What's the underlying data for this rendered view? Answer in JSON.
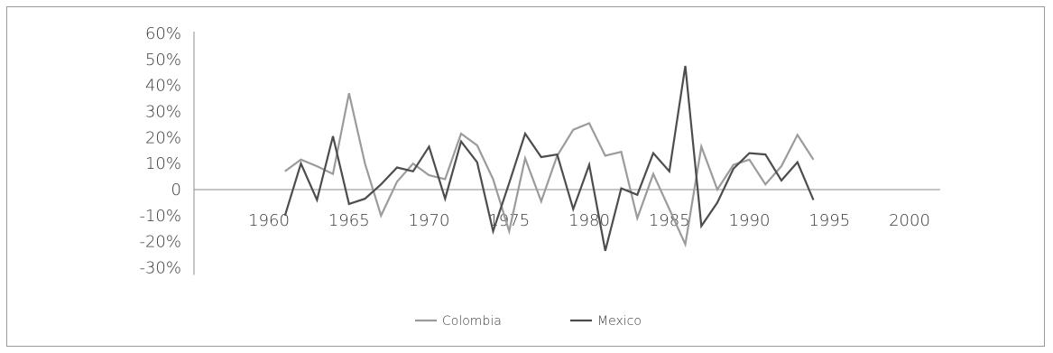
{
  "chart_data": {
    "type": "line",
    "title": "",
    "xlabel": "",
    "ylabel": "",
    "x_ticks": [
      1960,
      1965,
      1970,
      1975,
      1980,
      1985,
      1990,
      1995,
      2000
    ],
    "x_tick_labels": [
      "1960",
      "1965",
      "1970",
      "1975",
      "1980",
      "1985",
      "1990",
      "1995",
      "2000"
    ],
    "y_ticks": [
      60,
      50,
      40,
      30,
      20,
      10,
      0,
      -10,
      -20,
      -30
    ],
    "y_tick_labels": [
      "60%",
      "50%",
      "40%",
      "30%",
      "20%",
      "10%",
      "0",
      "-10%",
      "-20%",
      "-30%"
    ],
    "xlim": [
      1955,
      2002
    ],
    "ylim": [
      -30,
      60
    ],
    "grid": false,
    "legend_position": "bottom",
    "series": [
      {
        "name": "Colombia",
        "color": "#9b9b9b",
        "x": [
          1961,
          1962,
          1963,
          1964,
          1965,
          1966,
          1967,
          1968,
          1969,
          1970,
          1971,
          1972,
          1973,
          1974,
          1975,
          1976,
          1977,
          1978,
          1979,
          1980,
          1981,
          1982,
          1983,
          1984,
          1985,
          1986,
          1987,
          1988,
          1989,
          1990,
          1991,
          1992,
          1993,
          1994
        ],
        "values": [
          7,
          11.5,
          9,
          6,
          37,
          10,
          -10,
          3,
          10,
          5.5,
          4,
          21.5,
          17,
          4,
          -16,
          12,
          -4.5,
          13,
          23,
          25.5,
          13,
          14.5,
          -11,
          6,
          -7.5,
          -21,
          16.5,
          0,
          9.5,
          11.5,
          2,
          9,
          21,
          11.5
        ]
      },
      {
        "name": "Mexico",
        "color": "#4d4d4d",
        "x": [
          1961,
          1962,
          1963,
          1964,
          1965,
          1966,
          1967,
          1968,
          1969,
          1970,
          1971,
          1972,
          1973,
          1974,
          1975,
          1976,
          1977,
          1978,
          1979,
          1980,
          1981,
          1982,
          1983,
          1984,
          1985,
          1986,
          1987,
          1988,
          1989,
          1990,
          1991,
          1992,
          1993,
          1994
        ],
        "values": [
          -10,
          10,
          -4,
          20.5,
          -5.5,
          -3.5,
          2,
          8.5,
          7,
          16.5,
          -3.5,
          18.5,
          10.5,
          -16,
          2.5,
          21.5,
          12.5,
          13.5,
          -7.5,
          9.5,
          -23.5,
          0.5,
          -2,
          14,
          7,
          47.5,
          -14,
          -5,
          8,
          14,
          13.5,
          3.5,
          10.5,
          -4
        ]
      }
    ]
  }
}
